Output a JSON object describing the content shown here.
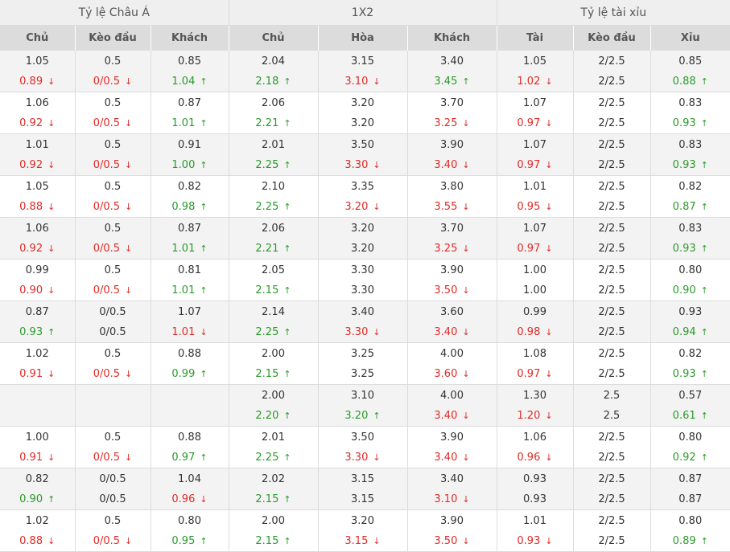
{
  "headers": {
    "groups": [
      "Tỷ lệ Châu Á",
      "1X2",
      "Tỷ lệ tài xỉu"
    ],
    "columns": [
      "Chủ",
      "Kèo đầu",
      "Khách",
      "Chủ",
      "Hòa",
      "Khách",
      "Tài",
      "Kèo đầu",
      "Xỉu"
    ]
  },
  "colors": {
    "down": "#e02b27",
    "up": "#2a9a2a",
    "header_bg": "#dcdcdc",
    "alt_row": "#f3f3f3"
  },
  "icons": {
    "down": "arrow-down-icon",
    "up": "arrow-up-icon"
  },
  "rows": [
    {
      "cells": [
        {
          "o": "1.05",
          "c": "0.89",
          "t": "down"
        },
        {
          "o": "0.5",
          "c": "0/0.5",
          "t": "down"
        },
        {
          "o": "0.85",
          "c": "1.04",
          "t": "up"
        },
        {
          "o": "2.04",
          "c": "2.18",
          "t": "up"
        },
        {
          "o": "3.15",
          "c": "3.10",
          "t": "down"
        },
        {
          "o": "3.40",
          "c": "3.45",
          "t": "up"
        },
        {
          "o": "1.05",
          "c": "1.02",
          "t": "down"
        },
        {
          "o": "2/2.5",
          "c": "2/2.5",
          "t": ""
        },
        {
          "o": "0.85",
          "c": "0.88",
          "t": "up"
        }
      ]
    },
    {
      "cells": [
        {
          "o": "1.06",
          "c": "0.92",
          "t": "down"
        },
        {
          "o": "0.5",
          "c": "0/0.5",
          "t": "down"
        },
        {
          "o": "0.87",
          "c": "1.01",
          "t": "up"
        },
        {
          "o": "2.06",
          "c": "2.21",
          "t": "up"
        },
        {
          "o": "3.20",
          "c": "3.20",
          "t": ""
        },
        {
          "o": "3.70",
          "c": "3.25",
          "t": "down"
        },
        {
          "o": "1.07",
          "c": "0.97",
          "t": "down"
        },
        {
          "o": "2/2.5",
          "c": "2/2.5",
          "t": ""
        },
        {
          "o": "0.83",
          "c": "0.93",
          "t": "up"
        }
      ]
    },
    {
      "cells": [
        {
          "o": "1.01",
          "c": "0.92",
          "t": "down"
        },
        {
          "o": "0.5",
          "c": "0/0.5",
          "t": "down"
        },
        {
          "o": "0.91",
          "c": "1.00",
          "t": "up"
        },
        {
          "o": "2.01",
          "c": "2.25",
          "t": "up"
        },
        {
          "o": "3.50",
          "c": "3.30",
          "t": "down"
        },
        {
          "o": "3.90",
          "c": "3.40",
          "t": "down"
        },
        {
          "o": "1.07",
          "c": "0.97",
          "t": "down"
        },
        {
          "o": "2/2.5",
          "c": "2/2.5",
          "t": ""
        },
        {
          "o": "0.83",
          "c": "0.93",
          "t": "up"
        }
      ]
    },
    {
      "cells": [
        {
          "o": "1.05",
          "c": "0.88",
          "t": "down"
        },
        {
          "o": "0.5",
          "c": "0/0.5",
          "t": "down"
        },
        {
          "o": "0.82",
          "c": "0.98",
          "t": "up"
        },
        {
          "o": "2.10",
          "c": "2.25",
          "t": "up"
        },
        {
          "o": "3.35",
          "c": "3.20",
          "t": "down"
        },
        {
          "o": "3.80",
          "c": "3.55",
          "t": "down"
        },
        {
          "o": "1.01",
          "c": "0.95",
          "t": "down"
        },
        {
          "o": "2/2.5",
          "c": "2/2.5",
          "t": ""
        },
        {
          "o": "0.82",
          "c": "0.87",
          "t": "up"
        }
      ]
    },
    {
      "cells": [
        {
          "o": "1.06",
          "c": "0.92",
          "t": "down"
        },
        {
          "o": "0.5",
          "c": "0/0.5",
          "t": "down"
        },
        {
          "o": "0.87",
          "c": "1.01",
          "t": "up"
        },
        {
          "o": "2.06",
          "c": "2.21",
          "t": "up"
        },
        {
          "o": "3.20",
          "c": "3.20",
          "t": ""
        },
        {
          "o": "3.70",
          "c": "3.25",
          "t": "down"
        },
        {
          "o": "1.07",
          "c": "0.97",
          "t": "down"
        },
        {
          "o": "2/2.5",
          "c": "2/2.5",
          "t": ""
        },
        {
          "o": "0.83",
          "c": "0.93",
          "t": "up"
        }
      ]
    },
    {
      "cells": [
        {
          "o": "0.99",
          "c": "0.90",
          "t": "down"
        },
        {
          "o": "0.5",
          "c": "0/0.5",
          "t": "down"
        },
        {
          "o": "0.81",
          "c": "1.01",
          "t": "up"
        },
        {
          "o": "2.05",
          "c": "2.15",
          "t": "up"
        },
        {
          "o": "3.30",
          "c": "3.30",
          "t": ""
        },
        {
          "o": "3.90",
          "c": "3.50",
          "t": "down"
        },
        {
          "o": "1.00",
          "c": "1.00",
          "t": ""
        },
        {
          "o": "2/2.5",
          "c": "2/2.5",
          "t": ""
        },
        {
          "o": "0.80",
          "c": "0.90",
          "t": "up"
        }
      ]
    },
    {
      "cells": [
        {
          "o": "0.87",
          "c": "0.93",
          "t": "up"
        },
        {
          "o": "0/0.5",
          "c": "0/0.5",
          "t": ""
        },
        {
          "o": "1.07",
          "c": "1.01",
          "t": "down"
        },
        {
          "o": "2.14",
          "c": "2.25",
          "t": "up"
        },
        {
          "o": "3.40",
          "c": "3.30",
          "t": "down"
        },
        {
          "o": "3.60",
          "c": "3.40",
          "t": "down"
        },
        {
          "o": "0.99",
          "c": "0.98",
          "t": "down"
        },
        {
          "o": "2/2.5",
          "c": "2/2.5",
          "t": ""
        },
        {
          "o": "0.93",
          "c": "0.94",
          "t": "up"
        }
      ]
    },
    {
      "cells": [
        {
          "o": "1.02",
          "c": "0.91",
          "t": "down"
        },
        {
          "o": "0.5",
          "c": "0/0.5",
          "t": "down"
        },
        {
          "o": "0.88",
          "c": "0.99",
          "t": "up"
        },
        {
          "o": "2.00",
          "c": "2.15",
          "t": "up"
        },
        {
          "o": "3.25",
          "c": "3.25",
          "t": ""
        },
        {
          "o": "4.00",
          "c": "3.60",
          "t": "down"
        },
        {
          "o": "1.08",
          "c": "0.97",
          "t": "down"
        },
        {
          "o": "2/2.5",
          "c": "2/2.5",
          "t": ""
        },
        {
          "o": "0.82",
          "c": "0.93",
          "t": "up"
        }
      ]
    },
    {
      "cells": [
        {
          "o": "",
          "c": "",
          "t": ""
        },
        {
          "o": "",
          "c": "",
          "t": ""
        },
        {
          "o": "",
          "c": "",
          "t": ""
        },
        {
          "o": "2.00",
          "c": "2.20",
          "t": "up"
        },
        {
          "o": "3.10",
          "c": "3.20",
          "t": "up"
        },
        {
          "o": "4.00",
          "c": "3.40",
          "t": "down"
        },
        {
          "o": "1.30",
          "c": "1.20",
          "t": "down"
        },
        {
          "o": "2.5",
          "c": "2.5",
          "t": ""
        },
        {
          "o": "0.57",
          "c": "0.61",
          "t": "up"
        }
      ]
    },
    {
      "cells": [
        {
          "o": "1.00",
          "c": "0.91",
          "t": "down"
        },
        {
          "o": "0.5",
          "c": "0/0.5",
          "t": "down"
        },
        {
          "o": "0.88",
          "c": "0.97",
          "t": "up"
        },
        {
          "o": "2.01",
          "c": "2.25",
          "t": "up"
        },
        {
          "o": "3.50",
          "c": "3.30",
          "t": "down"
        },
        {
          "o": "3.90",
          "c": "3.40",
          "t": "down"
        },
        {
          "o": "1.06",
          "c": "0.96",
          "t": "down"
        },
        {
          "o": "2/2.5",
          "c": "2/2.5",
          "t": ""
        },
        {
          "o": "0.80",
          "c": "0.92",
          "t": "up"
        }
      ]
    },
    {
      "cells": [
        {
          "o": "0.82",
          "c": "0.90",
          "t": "up"
        },
        {
          "o": "0/0.5",
          "c": "0/0.5",
          "t": ""
        },
        {
          "o": "1.04",
          "c": "0.96",
          "t": "down"
        },
        {
          "o": "2.02",
          "c": "2.15",
          "t": "up"
        },
        {
          "o": "3.15",
          "c": "3.15",
          "t": ""
        },
        {
          "o": "3.40",
          "c": "3.10",
          "t": "down"
        },
        {
          "o": "0.93",
          "c": "0.93",
          "t": ""
        },
        {
          "o": "2/2.5",
          "c": "2/2.5",
          "t": ""
        },
        {
          "o": "0.87",
          "c": "0.87",
          "t": ""
        }
      ]
    },
    {
      "cells": [
        {
          "o": "1.02",
          "c": "0.88",
          "t": "down"
        },
        {
          "o": "0.5",
          "c": "0/0.5",
          "t": "down"
        },
        {
          "o": "0.80",
          "c": "0.95",
          "t": "up"
        },
        {
          "o": "2.00",
          "c": "2.15",
          "t": "up"
        },
        {
          "o": "3.20",
          "c": "3.15",
          "t": "down"
        },
        {
          "o": "3.90",
          "c": "3.50",
          "t": "down"
        },
        {
          "o": "1.01",
          "c": "0.93",
          "t": "down"
        },
        {
          "o": "2/2.5",
          "c": "2/2.5",
          "t": ""
        },
        {
          "o": "0.80",
          "c": "0.89",
          "t": "up"
        }
      ]
    }
  ]
}
